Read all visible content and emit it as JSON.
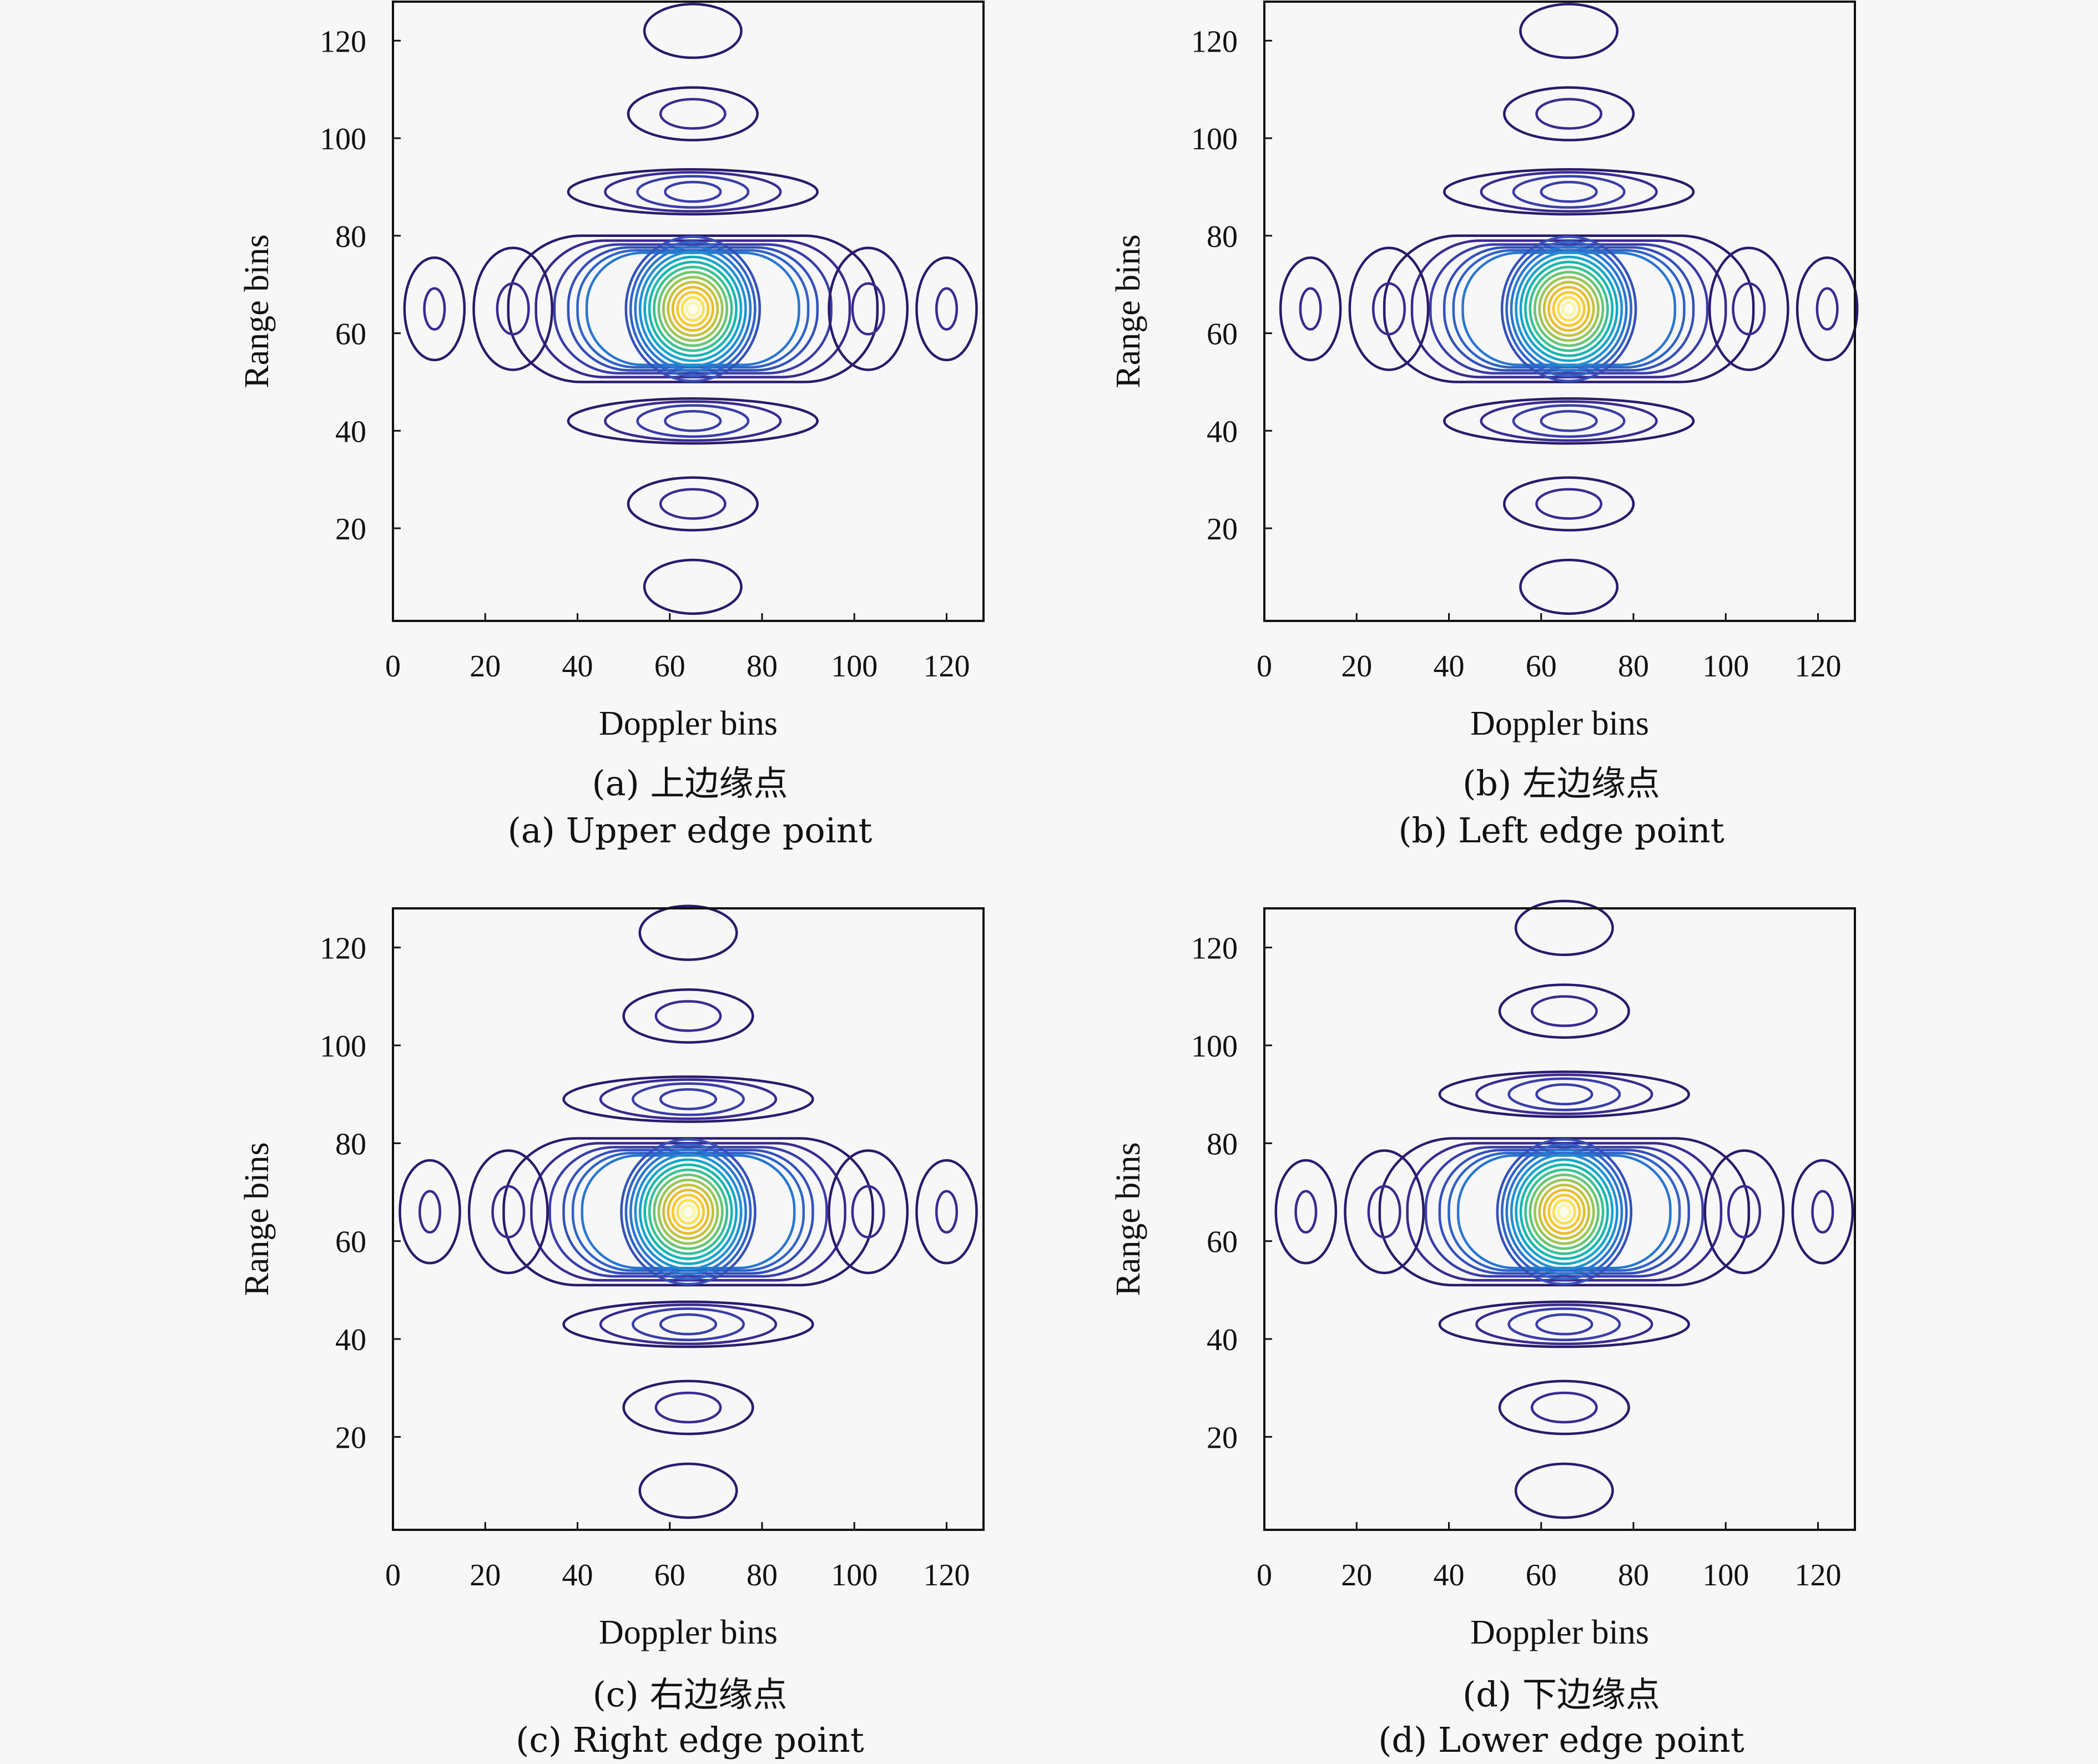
{
  "figure": {
    "panels": [
      {
        "caption_cn": "(a) 上边缘点",
        "caption_en": "(a) Upper edge point"
      },
      {
        "caption_cn": "(b) 左边缘点",
        "caption_en": "(b) Left edge point"
      },
      {
        "caption_cn": "(c) 右边缘点",
        "caption_en": "(c) Right edge point"
      },
      {
        "caption_cn": "(d) 下边缘点",
        "caption_en": "(d) Lower edge point"
      }
    ]
  },
  "colors": {
    "levels": [
      "#2b1a6b",
      "#3b2a8f",
      "#3a3ea8",
      "#3450b8",
      "#2f63c6",
      "#2877cf",
      "#1f8fd2",
      "#12a5c9",
      "#13b6b0",
      "#36c193",
      "#66c673",
      "#97c656",
      "#c4c23a",
      "#e6bd2b",
      "#f7c92a",
      "#fbe14a",
      "#fdf6a0"
    ]
  },
  "chart_data": [
    {
      "type": "contour",
      "xlabel": "Doppler bins",
      "ylabel": "Range bins",
      "xlim": [
        0,
        128
      ],
      "ylim": [
        1,
        128
      ],
      "xticks": [
        0,
        20,
        40,
        60,
        80,
        100,
        120
      ],
      "yticks": [
        20,
        40,
        60,
        80,
        100,
        120
      ],
      "peak": {
        "doppler": 65,
        "range": 65
      },
      "range_sidelobes": [
        {
          "range": 8,
          "levels": 1
        },
        {
          "range": 25,
          "levels": 2
        },
        {
          "range": 42,
          "levels": 4
        },
        {
          "range": 89,
          "levels": 4
        },
        {
          "range": 105,
          "levels": 2
        },
        {
          "range": 122,
          "levels": 1
        }
      ],
      "doppler_sidelobes": [
        {
          "doppler": 9,
          "levels": 2
        },
        {
          "doppler": 26,
          "levels": 2
        },
        {
          "doppler": 103,
          "levels": 2
        },
        {
          "doppler": 120,
          "levels": 2
        }
      ]
    },
    {
      "type": "contour",
      "xlabel": "Doppler bins",
      "ylabel": "Range bins",
      "xlim": [
        0,
        128
      ],
      "ylim": [
        1,
        128
      ],
      "xticks": [
        0,
        20,
        40,
        60,
        80,
        100,
        120
      ],
      "yticks": [
        20,
        40,
        60,
        80,
        100,
        120
      ],
      "peak": {
        "doppler": 66,
        "range": 65
      },
      "range_sidelobes": [
        {
          "range": 8,
          "levels": 1
        },
        {
          "range": 25,
          "levels": 2
        },
        {
          "range": 42,
          "levels": 4
        },
        {
          "range": 89,
          "levels": 4
        },
        {
          "range": 105,
          "levels": 2
        },
        {
          "range": 122,
          "levels": 1
        }
      ],
      "doppler_sidelobes": [
        {
          "doppler": 10,
          "levels": 2
        },
        {
          "doppler": 27,
          "levels": 2
        },
        {
          "doppler": 105,
          "levels": 2
        },
        {
          "doppler": 122,
          "levels": 2
        }
      ]
    },
    {
      "type": "contour",
      "xlabel": "Doppler bins",
      "ylabel": "Range bins",
      "xlim": [
        0,
        128
      ],
      "ylim": [
        1,
        128
      ],
      "xticks": [
        0,
        20,
        40,
        60,
        80,
        100,
        120
      ],
      "yticks": [
        20,
        40,
        60,
        80,
        100,
        120
      ],
      "peak": {
        "doppler": 64,
        "range": 66
      },
      "range_sidelobes": [
        {
          "range": 9,
          "levels": 1
        },
        {
          "range": 26,
          "levels": 2
        },
        {
          "range": 43,
          "levels": 4
        },
        {
          "range": 89,
          "levels": 4
        },
        {
          "range": 106,
          "levels": 2
        },
        {
          "range": 123,
          "levels": 1
        }
      ],
      "doppler_sidelobes": [
        {
          "doppler": 8,
          "levels": 2
        },
        {
          "doppler": 25,
          "levels": 2
        },
        {
          "doppler": 103,
          "levels": 2
        },
        {
          "doppler": 120,
          "levels": 2
        }
      ]
    },
    {
      "type": "contour",
      "xlabel": "Doppler bins",
      "ylabel": "Range bins",
      "xlim": [
        0,
        128
      ],
      "ylim": [
        1,
        128
      ],
      "xticks": [
        0,
        20,
        40,
        60,
        80,
        100,
        120
      ],
      "yticks": [
        20,
        40,
        60,
        80,
        100,
        120
      ],
      "peak": {
        "doppler": 65,
        "range": 66
      },
      "range_sidelobes": [
        {
          "range": 9,
          "levels": 1
        },
        {
          "range": 26,
          "levels": 2
        },
        {
          "range": 43,
          "levels": 4
        },
        {
          "range": 90,
          "levels": 4
        },
        {
          "range": 107,
          "levels": 2
        },
        {
          "range": 124,
          "levels": 1
        }
      ],
      "doppler_sidelobes": [
        {
          "doppler": 9,
          "levels": 2
        },
        {
          "doppler": 26,
          "levels": 2
        },
        {
          "doppler": 104,
          "levels": 2
        },
        {
          "doppler": 121,
          "levels": 2
        }
      ]
    }
  ]
}
